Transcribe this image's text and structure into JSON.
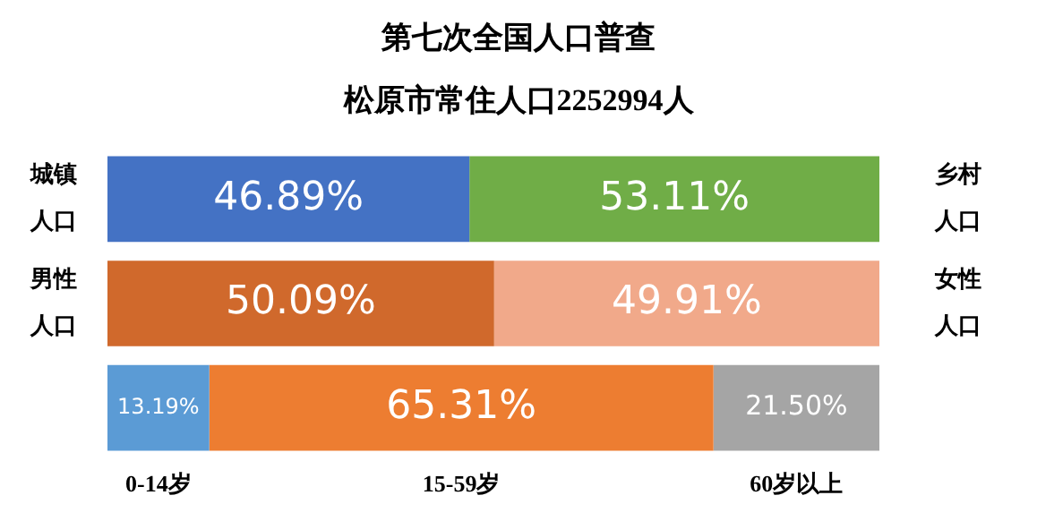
{
  "chart_data": {
    "type": "bar",
    "title": "第七次全国人口普查",
    "subtitle": "松原市常住人口2252994人",
    "orientation": "horizontal",
    "stacked": true,
    "tick_labels": false,
    "categories": [
      null,
      null,
      null
    ],
    "series": [
      {
        "colors": [
          "#4472c4",
          "#d0692c",
          "#5b9bd5"
        ],
        "values": [
          46.89,
          50.09,
          13.19
        ],
        "value_labels": [
          "46.89%",
          "50.09%",
          "13.19%"
        ]
      },
      {
        "colors": [
          "#70ad47",
          "#f1a98a",
          "#ed7d31"
        ],
        "values": [
          53.11,
          49.91,
          65.31
        ],
        "value_labels": [
          "53.11%",
          "49.91%",
          "65.31%"
        ]
      },
      {
        "colors": [
          "#a5a5a5",
          "#a5a5a5",
          "#a5a5a5"
        ],
        "values": [
          null,
          null,
          21.5
        ],
        "value_labels": [
          null,
          null,
          "21.50%"
        ]
      }
    ],
    "annotations": [
      "城镇人口",
      "乡村人口",
      "男性人口",
      "女性人口",
      "0-14岁",
      "15-59岁",
      "60岁以上"
    ]
  }
}
